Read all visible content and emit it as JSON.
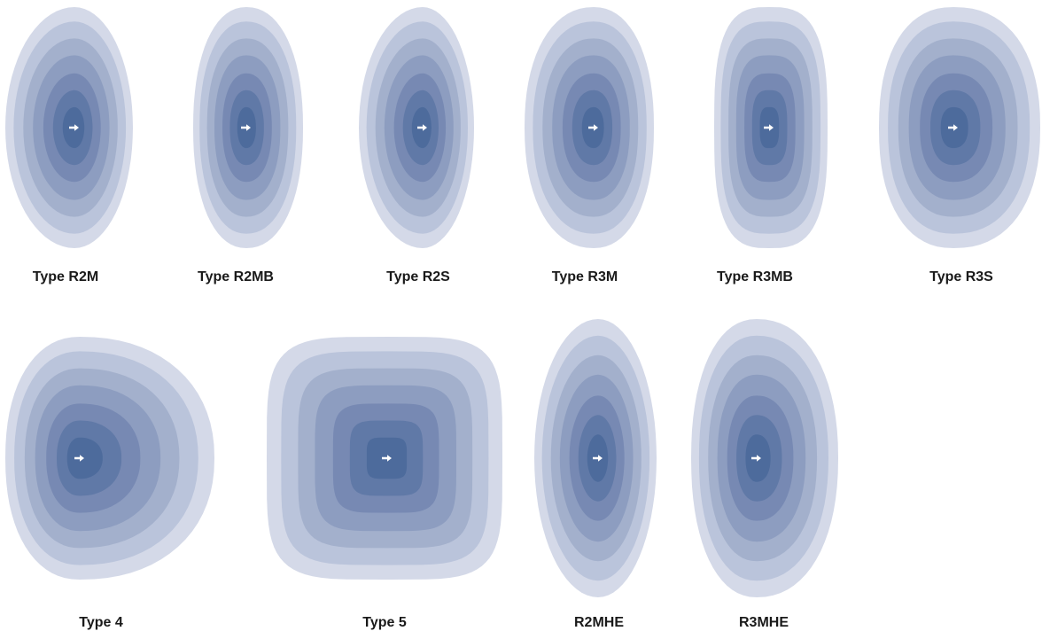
{
  "items": [
    {
      "label": "Type R2M"
    },
    {
      "label": "Type R2MB"
    },
    {
      "label": "Type R2S"
    },
    {
      "label": "Type R3M"
    },
    {
      "label": "Type R3MB"
    },
    {
      "label": "Type R3S"
    },
    {
      "label": "Type 4"
    },
    {
      "label": "Type 5"
    },
    {
      "label": "R2MHE"
    },
    {
      "label": "R3MHE"
    }
  ]
}
